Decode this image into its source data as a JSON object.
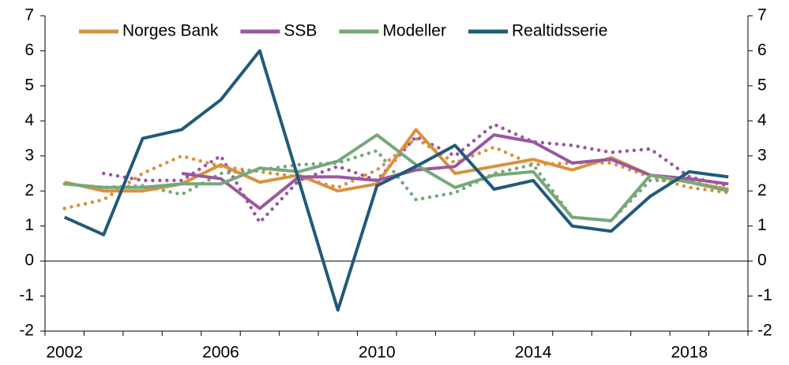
{
  "chart_data": {
    "type": "line",
    "categories": [
      "2002",
      null,
      null,
      null,
      "2006",
      null,
      null,
      null,
      "2010",
      null,
      null,
      null,
      "2014",
      null,
      null,
      null,
      "2018",
      null
    ],
    "ylim": [
      -2,
      7
    ],
    "yticks": [
      -2,
      -1,
      0,
      1,
      2,
      3,
      4,
      5,
      6,
      7
    ],
    "y2lim": [
      -2,
      7
    ],
    "y2ticks": [
      -2,
      -1,
      0,
      1,
      2,
      3,
      4,
      5,
      6,
      7
    ],
    "legend": "top",
    "series": [
      {
        "color": "#D9913E",
        "style": "dotted",
        "values": [
          1.5,
          1.75,
          2.5,
          3.0,
          2.7,
          2.55,
          2.4,
          2.1,
          2.6,
          3.5,
          2.8,
          3.25,
          2.75,
          2.8,
          2.8,
          2.4,
          2.1,
          1.95
        ]
      },
      {
        "color": "#9B57A0",
        "style": "dotted",
        "values": [
          null,
          2.5,
          2.3,
          2.3,
          3.0,
          1.1,
          2.3,
          2.7,
          2.3,
          3.55,
          3.0,
          3.9,
          3.4,
          3.3,
          3.1,
          3.2,
          2.4,
          2.15
        ]
      },
      {
        "color": "#76A87A",
        "style": "dotted",
        "values": [
          2.2,
          2.1,
          2.15,
          1.9,
          2.5,
          2.6,
          2.75,
          2.8,
          3.15,
          1.75,
          1.95,
          2.5,
          2.75,
          1.25,
          1.15,
          2.3,
          2.3,
          2.0
        ]
      },
      {
        "name": "Norges Bank",
        "color": "#D9913E",
        "values": [
          2.25,
          2.0,
          2.0,
          2.2,
          2.75,
          2.25,
          2.45,
          2.0,
          2.2,
          3.75,
          2.5,
          2.7,
          2.9,
          2.6,
          2.95,
          2.45,
          2.25,
          2.05
        ]
      },
      {
        "name": "SSB",
        "color": "#9B57A0",
        "values": [
          null,
          null,
          null,
          2.5,
          2.35,
          1.5,
          2.4,
          2.4,
          2.3,
          2.6,
          2.7,
          3.6,
          3.4,
          2.8,
          2.9,
          2.45,
          2.35,
          2.2
        ]
      },
      {
        "name": "Modeller",
        "color": "#76A87A",
        "values": [
          2.2,
          2.1,
          2.1,
          2.2,
          2.2,
          2.65,
          2.55,
          2.85,
          3.6,
          2.75,
          2.1,
          2.45,
          2.55,
          1.25,
          1.15,
          2.45,
          2.25,
          2.0
        ]
      },
      {
        "name": "Realtidsserie",
        "color": "#215A7A",
        "values": [
          1.25,
          0.75,
          3.5,
          3.75,
          4.6,
          6.0,
          2.3,
          -1.4,
          2.15,
          2.7,
          3.3,
          2.05,
          2.3,
          1.0,
          0.85,
          1.85,
          2.55,
          2.4
        ]
      }
    ]
  }
}
